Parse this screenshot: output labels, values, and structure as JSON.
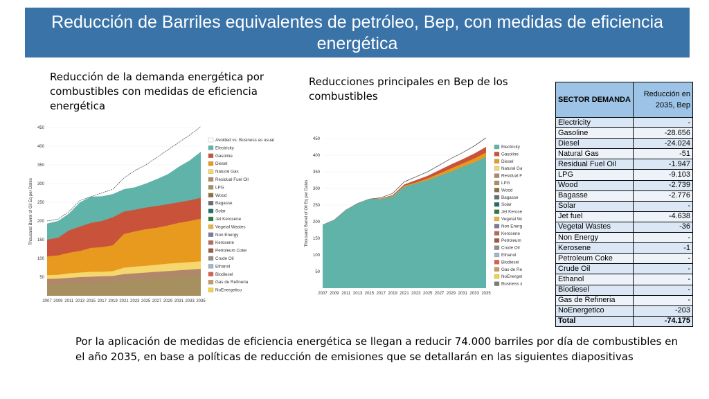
{
  "slide": {
    "title": "Reducción de Barriles equivalentes de petróleo, Bep, con medidas de eficiencia energética",
    "caption_left": "Reducción de la demanda energética por combustibles con medidas de eficiencia energética",
    "caption_mid": "Reducciones principales en Bep de los combustibles",
    "bottom_text": "Por la aplicación de medidas de eficiencia energética se llegan a reducir 74.000 barriles por día de combustibles en el año 2035, en base a políticas de reducción de emisiones que se detallarán en las siguientes diapositivas"
  },
  "table": {
    "header_sector": "SECTOR DEMANDA",
    "header_value": "Reducción en 2035, Bep",
    "rows": [
      {
        "sector": "Electricity",
        "value": "-"
      },
      {
        "sector": "Gasoline",
        "value": "-28.656"
      },
      {
        "sector": "Diesel",
        "value": "-24.024"
      },
      {
        "sector": "Natural Gas",
        "value": "-51"
      },
      {
        "sector": "Residual Fuel Oil",
        "value": "-1.947"
      },
      {
        "sector": "LPG",
        "value": "-9.103"
      },
      {
        "sector": "Wood",
        "value": "-2.739"
      },
      {
        "sector": "Bagasse",
        "value": "-2.776"
      },
      {
        "sector": "Solar",
        "value": "-"
      },
      {
        "sector": "Jet fuel",
        "value": "-4.638"
      },
      {
        "sector": "Vegetal Wastes",
        "value": "-36"
      },
      {
        "sector": "Non Energy",
        "value": "-"
      },
      {
        "sector": "Kerosene",
        "value": "-1"
      },
      {
        "sector": "Petroleum Coke",
        "value": "-"
      },
      {
        "sector": "Crude Oil",
        "value": "-"
      },
      {
        "sector": "Ethanol",
        "value": "-"
      },
      {
        "sector": "Biodiesel",
        "value": "-"
      },
      {
        "sector": "Gas de Refineria",
        "value": "-"
      },
      {
        "sector": "NoEnergetico",
        "value": "-203"
      }
    ],
    "total_label": "Total",
    "total_value": "-74.175"
  },
  "chart_data": [
    {
      "type": "area",
      "ylabel": "Thousand Barrel of Oil Eq per Dates",
      "ylim": [
        0,
        450
      ],
      "yticks": [
        "50",
        "100",
        "150",
        "200",
        "250",
        "300",
        "350",
        "400",
        "450"
      ],
      "x": [
        "2007",
        "2009",
        "2011",
        "2013",
        "2015",
        "2017",
        "2019",
        "2021",
        "2023",
        "2025",
        "2027",
        "2029",
        "2031",
        "2033",
        "2035"
      ],
      "legend": [
        "Avoided vs. Business as usual",
        "Electricity",
        "Gasoline",
        "Diesel",
        "Natural Gas",
        "Residual Fuel Oil",
        "LPG",
        "Wood",
        "Bagasse",
        "Solar",
        "Jet Kerosene",
        "Vegetal Wastes",
        "Non Energy",
        "Kerosene",
        "Petroleum Coke",
        "Crude Oil",
        "Ethanol",
        "Biodiesel",
        "Gas de Refineria",
        "NoEnergetico"
      ],
      "colors": {
        "Electricity": "#5fb3a8",
        "Gasoline": "#c9533a",
        "Diesel": "#e89a1f",
        "Natural Gas": "#f5d76e",
        "Residual Fuel Oil": "#b0876a",
        "LPG": "#a7905f",
        "Wood": "#8a7144",
        "Bagasse": "#6b6b6b",
        "Solar": "#1e6e6a",
        "Jet Kerosene": "#2f7a3c",
        "Vegetal Wastes": "#e5b43c",
        "Non Energy": "#7a7a9c",
        "Kerosene": "#b56b5c",
        "Petroleum Coke": "#a05a3c",
        "Crude Oil": "#8e8e8e",
        "Ethanol": "#9fb7c9",
        "Biodiesel": "#d9604b",
        "Gas de Refineria": "#c79a64",
        "NoEnergetico": "#f3d23c"
      },
      "series": [
        {
          "name": "Avoided vs. Business as usual",
          "values": [
            200,
            205,
            225,
            255,
            265,
            275,
            285,
            315,
            335,
            350,
            370,
            390,
            410,
            430,
            452
          ]
        },
        {
          "name": "Electricity",
          "values": [
            193,
            200,
            220,
            250,
            265,
            266,
            272,
            285,
            290,
            300,
            312,
            325,
            345,
            362,
            385
          ]
        },
        {
          "name": "Gasoline",
          "values": [
            150,
            155,
            175,
            185,
            195,
            200,
            210,
            225,
            230,
            236,
            240,
            245,
            250,
            255,
            262
          ]
        },
        {
          "name": "Diesel",
          "values": [
            105,
            108,
            115,
            120,
            128,
            130,
            135,
            165,
            172,
            178,
            182,
            188,
            195,
            200,
            206
          ]
        },
        {
          "name": "Natural Gas",
          "values": [
            55,
            56,
            60,
            62,
            64,
            64,
            66,
            75,
            78,
            80,
            83,
            86,
            88,
            90,
            92
          ]
        },
        {
          "name": "Residual Fuel Oil",
          "values": [
            45,
            46,
            48,
            50,
            51,
            52,
            53,
            58,
            60,
            62,
            64,
            66,
            68,
            70,
            72
          ]
        },
        {
          "name": "LPG",
          "values": [
            30,
            31,
            33,
            34,
            35,
            36,
            37,
            42,
            44,
            46,
            48,
            50,
            52,
            54,
            56
          ]
        }
      ]
    },
    {
      "type": "area",
      "ylabel": "Thousand Barrel of Oil Eq per Dates",
      "ylim": [
        0,
        450
      ],
      "yticks": [
        "50",
        "100",
        "150",
        "200",
        "250",
        "300",
        "350",
        "400",
        "450"
      ],
      "x": [
        "2007",
        "2009",
        "2011",
        "2013",
        "2015",
        "2017",
        "2019",
        "2021",
        "2023",
        "2025",
        "2027",
        "2029",
        "2031",
        "2033",
        "2035"
      ],
      "legend": [
        "Electricity",
        "Gasoline",
        "Diesel",
        "Natural Gas",
        "Residual Fuel Oil",
        "LPG",
        "Wood",
        "Bagasse",
        "Solar",
        "Jet Kerosene",
        "Vegetal Wastes",
        "Non Energy",
        "Kerosene",
        "Petroleum Coke",
        "Crude Oil",
        "Ethanol",
        "Biodiesel",
        "Gas de Refineria",
        "NoEnergetico",
        "Business as usual"
      ],
      "colors": {
        "Electricity": "#5fb3a8",
        "Gasoline": "#c9533a",
        "Diesel": "#e89a1f",
        "Natural Gas": "#f5d76e",
        "Residual Fuel Oil": "#b0876a",
        "LPG": "#a7905f",
        "Wood": "#8a7144",
        "Bagasse": "#6b6b6b",
        "Solar": "#1e6e6a",
        "Jet Kerosene": "#2f7a3c",
        "Vegetal Wastes": "#e5b43c",
        "Non Energy": "#7a7a9c",
        "Kerosene": "#b56b5c",
        "Petroleum Coke": "#a05a3c",
        "Crude Oil": "#8e8e8e",
        "Ethanol": "#9fb7c9",
        "Biodiesel": "#d9604b",
        "Gas de Refineria": "#c79a64",
        "NoEnergetico": "#f3d23c",
        "Business as usual": "#7a7a7a"
      },
      "series": [
        {
          "name": "Business as usual",
          "values": [
            190,
            205,
            235,
            255,
            268,
            272,
            285,
            320,
            335,
            350,
            370,
            390,
            408,
            428,
            452
          ]
        },
        {
          "name": "Gasoline",
          "values": [
            190,
            205,
            235,
            255,
            268,
            270,
            280,
            312,
            325,
            338,
            355,
            372,
            388,
            405,
            425
          ]
        },
        {
          "name": "Diesel",
          "values": [
            190,
            205,
            235,
            255,
            268,
            269,
            278,
            308,
            318,
            330,
            345,
            360,
            375,
            390,
            408
          ]
        },
        {
          "name": "Electricity",
          "values": [
            190,
            205,
            235,
            255,
            268,
            268,
            276,
            305,
            315,
            325,
            338,
            350,
            365,
            378,
            395
          ]
        }
      ]
    }
  ]
}
